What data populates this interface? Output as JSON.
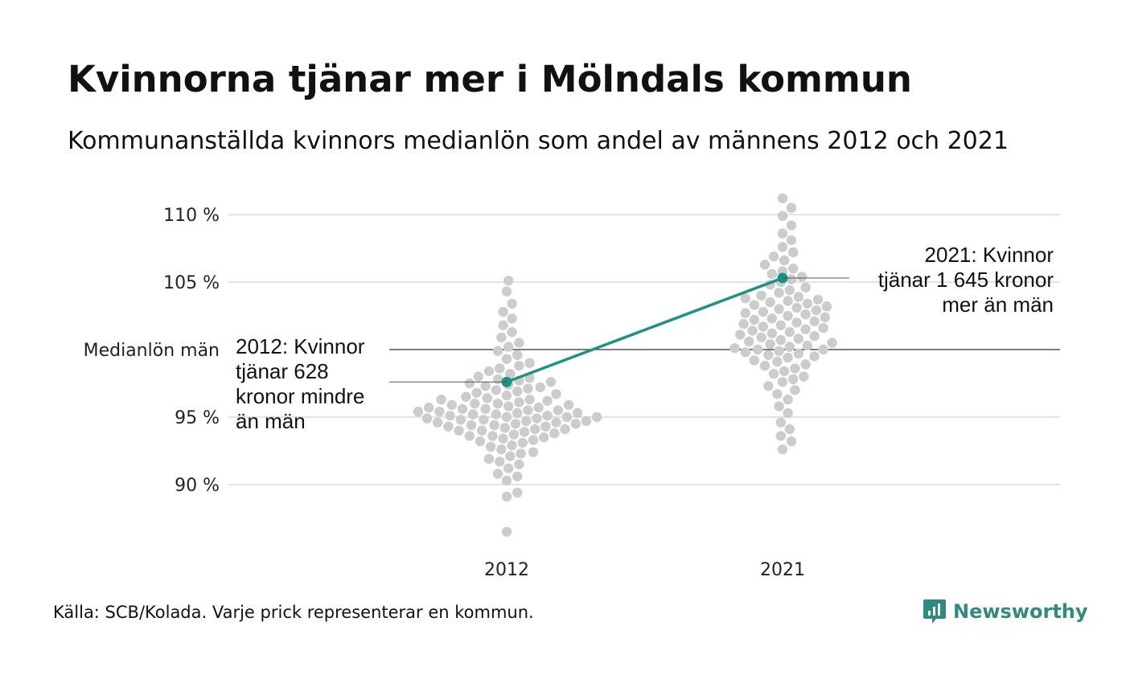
{
  "title": "Kvinnorna tjänar mer i Mölndals kommun",
  "subtitle": "Kommunanställda kvinnors medianlön som andel av männens 2012 och 2021",
  "source": "Källa: SCB/Kolada. Varje prick representerar en kommun.",
  "brand": {
    "name": "Newsworthy",
    "icon": "newsworthy-logo-icon",
    "color": "#2e8b80"
  },
  "chart_data": {
    "type": "scatter",
    "title": "Kvinnorna tjänar mer i Mölndals kommun",
    "subtitle": "Kommunanställda kvinnors medianlön som andel av männens 2012 och 2021",
    "categories": [
      "2012",
      "2021"
    ],
    "ylim": [
      85.5,
      111.5
    ],
    "yticks": [
      {
        "value": 110,
        "label": "110 %"
      },
      {
        "value": 105,
        "label": "105 %"
      },
      {
        "value": 100,
        "label": "Medianlön män"
      },
      {
        "value": 95,
        "label": "95 %"
      },
      {
        "value": 90,
        "label": "90 %"
      }
    ],
    "reference_line": {
      "value": 100,
      "label": "Medianlön män"
    },
    "grid": true,
    "colors": {
      "dots": "#cccccc",
      "highlight": "#1a9482",
      "grid": "#e3e3e3",
      "reference": "#333333"
    },
    "series": [
      {
        "name": "2012",
        "values": [
          86.5,
          89.1,
          89.4,
          90.3,
          90.6,
          90.8,
          91.2,
          91.5,
          91.7,
          91.9,
          92.1,
          92.3,
          92.4,
          92.6,
          92.8,
          92.9,
          93.1,
          93.2,
          93.3,
          93.4,
          93.5,
          93.6,
          93.6,
          93.7,
          93.8,
          93.9,
          94.0,
          94.0,
          94.1,
          94.1,
          94.2,
          94.3,
          94.3,
          94.4,
          94.4,
          94.5,
          94.5,
          94.6,
          94.6,
          94.7,
          94.7,
          94.8,
          94.8,
          94.9,
          94.9,
          95.0,
          95.0,
          95.0,
          95.1,
          95.1,
          95.2,
          95.2,
          95.3,
          95.3,
          95.4,
          95.4,
          95.5,
          95.5,
          95.6,
          95.6,
          95.7,
          95.7,
          95.8,
          95.9,
          95.9,
          96.0,
          96.0,
          96.1,
          96.2,
          96.3,
          96.3,
          96.4,
          96.5,
          96.6,
          96.7,
          96.8,
          96.9,
          97.0,
          97.1,
          97.2,
          97.3,
          97.4,
          97.5,
          97.6,
          97.7,
          97.8,
          97.9,
          98.0,
          98.2,
          98.4,
          98.6,
          98.8,
          99.0,
          99.3,
          99.6,
          99.9,
          100.2,
          100.5,
          100.9,
          101.3,
          101.8,
          102.3,
          102.8,
          103.4,
          104.3,
          105.1
        ]
      },
      {
        "name": "2021",
        "values": [
          92.6,
          93.2,
          93.6,
          94.1,
          94.6,
          95.3,
          95.8,
          96.3,
          96.7,
          97.0,
          97.3,
          97.6,
          97.8,
          98.0,
          98.2,
          98.4,
          98.6,
          98.8,
          98.9,
          99.1,
          99.2,
          99.4,
          99.5,
          99.6,
          99.7,
          99.8,
          99.9,
          100.0,
          100.0,
          100.1,
          100.2,
          100.3,
          100.4,
          100.5,
          100.6,
          100.7,
          100.8,
          100.9,
          101.0,
          101.1,
          101.2,
          101.3,
          101.4,
          101.5,
          101.6,
          101.7,
          101.8,
          101.9,
          102.0,
          102.1,
          102.2,
          102.3,
          102.4,
          102.5,
          102.6,
          102.7,
          102.8,
          102.9,
          103.0,
          103.1,
          103.2,
          103.3,
          103.4,
          103.5,
          103.6,
          103.7,
          103.8,
          103.9,
          104.0,
          104.2,
          104.4,
          104.6,
          104.8,
          105.0,
          105.2,
          105.4,
          105.6,
          105.8,
          106.0,
          106.3,
          106.6,
          106.9,
          107.2,
          107.6,
          108.1,
          108.6,
          109.2,
          109.9,
          110.5,
          111.2
        ]
      }
    ],
    "highlight": {
      "name": "Mölndal",
      "points": [
        {
          "x": "2012",
          "y": 97.6
        },
        {
          "x": "2021",
          "y": 105.3
        }
      ]
    },
    "annotations": [
      {
        "x": "2012",
        "y": 97.6,
        "lines": [
          "2012: Kvinnor",
          "tjänar 628",
          "kronor mindre",
          "än män"
        ]
      },
      {
        "x": "2021",
        "y": 105.3,
        "lines": [
          "2021: Kvinnor",
          "tjänar 1 645 kronor",
          "mer än män"
        ]
      }
    ]
  }
}
